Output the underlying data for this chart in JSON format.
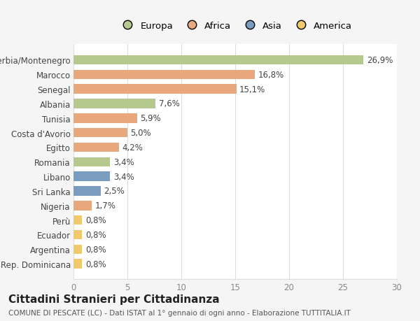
{
  "categories": [
    "Serbia/Montenegro",
    "Marocco",
    "Senegal",
    "Albania",
    "Tunisia",
    "Costa d'Avorio",
    "Egitto",
    "Romania",
    "Libano",
    "Sri Lanka",
    "Nigeria",
    "Perù",
    "Ecuador",
    "Argentina",
    "Rep. Dominicana"
  ],
  "values": [
    26.9,
    16.8,
    15.1,
    7.6,
    5.9,
    5.0,
    4.2,
    3.4,
    3.4,
    2.5,
    1.7,
    0.8,
    0.8,
    0.8,
    0.8
  ],
  "labels": [
    "26,9%",
    "16,8%",
    "15,1%",
    "7,6%",
    "5,9%",
    "5,0%",
    "4,2%",
    "3,4%",
    "3,4%",
    "2,5%",
    "1,7%",
    "0,8%",
    "0,8%",
    "0,8%",
    "0,8%"
  ],
  "colors": [
    "#b5c98e",
    "#e8a87c",
    "#e8a87c",
    "#b5c98e",
    "#e8a87c",
    "#e8a87c",
    "#e8a87c",
    "#b5c98e",
    "#7a9dbf",
    "#7a9dbf",
    "#e8a87c",
    "#f0c96a",
    "#f0c96a",
    "#f0c96a",
    "#f0c96a"
  ],
  "legend_labels": [
    "Europa",
    "Africa",
    "Asia",
    "America"
  ],
  "legend_colors": [
    "#b5c98e",
    "#e8a87c",
    "#7a9dbf",
    "#f0c96a"
  ],
  "xlim": [
    0,
    30
  ],
  "xticks": [
    0,
    5,
    10,
    15,
    20,
    25,
    30
  ],
  "title": "Cittadini Stranieri per Cittadinanza",
  "subtitle": "COMUNE DI PESCATE (LC) - Dati ISTAT al 1° gennaio di ogni anno - Elaborazione TUTTITALIA.IT",
  "bg_color": "#f5f5f5",
  "plot_bg_color": "#ffffff",
  "grid_color": "#dddddd",
  "label_fontsize": 8.5,
  "tick_fontsize": 8.5,
  "title_fontsize": 11,
  "subtitle_fontsize": 7.5,
  "bar_height": 0.65
}
